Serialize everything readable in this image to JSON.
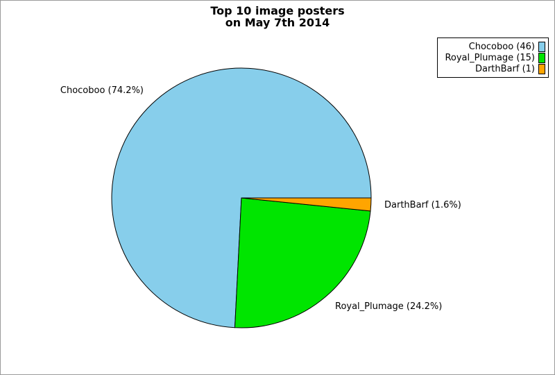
{
  "chart_data": {
    "type": "pie",
    "title_line1": "Top 10 image posters",
    "title_line2": "on May 7th 2014",
    "categories": [
      "Chocoboo",
      "Royal_Plumage",
      "DarthBarf"
    ],
    "values": [
      46,
      15,
      1
    ],
    "percentages": [
      74.2,
      24.2,
      1.6
    ],
    "colors": [
      "#87CEEB",
      "#00E500",
      "#FFA500"
    ],
    "slice_labels": [
      "Chocoboo (74.2%)",
      "Royal_Plumage (24.2%)",
      "DarthBarf (1.6%)"
    ],
    "legend_labels": [
      "Chocoboo (46)",
      "Royal_Plumage (15)",
      "DarthBarf (1)"
    ],
    "legend_position": "top-right",
    "slice_outline_color": "#000000",
    "background_color": "#FFFFFF",
    "canvas_border_color": "#9A9A9A",
    "start_angle_deg": 0,
    "direction": "counterclockwise"
  }
}
